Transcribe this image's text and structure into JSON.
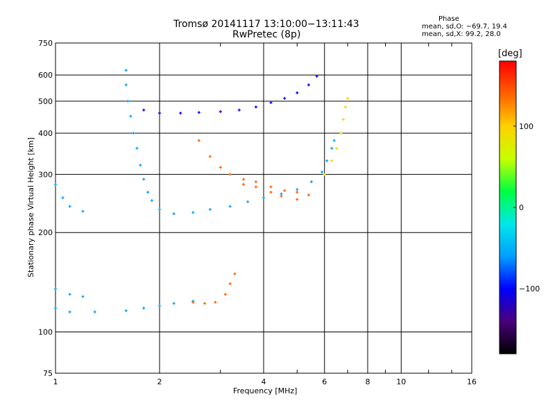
{
  "chart_data": {
    "type": "scatter",
    "title_line1": "Tromsø 20141117 13:10:00−13:11:43",
    "title_line2": "RwPretec (8p)",
    "xlabel": "Frequency [MHz]",
    "ylabel": "Stationary phase Virtual Height [km]",
    "x_scale": "log",
    "y_scale": "log",
    "xlim": [
      1,
      16
    ],
    "ylim": [
      75,
      750
    ],
    "x_ticks": [
      {
        "value": 1,
        "label": "1"
      },
      {
        "value": 2,
        "label": "2"
      },
      {
        "value": 4,
        "label": "4"
      },
      {
        "value": 6,
        "label": "6"
      },
      {
        "value": 8,
        "label": "8"
      },
      {
        "value": 10,
        "label": "10"
      },
      {
        "value": 16,
        "label": "16"
      }
    ],
    "y_ticks": [
      {
        "value": 75,
        "label": "75"
      },
      {
        "value": 100,
        "label": "100"
      },
      {
        "value": 200,
        "label": "200"
      },
      {
        "value": 300,
        "label": "300"
      },
      {
        "value": 400,
        "label": "400"
      },
      {
        "value": 500,
        "label": "500"
      },
      {
        "value": 600,
        "label": "600"
      },
      {
        "value": 750,
        "label": "750"
      }
    ],
    "grid": true,
    "phase_stats": {
      "title": "Phase",
      "line_o": "mean, sd,O: −69.7, 19.4",
      "line_x": "mean, sd,X:  99.2, 28.0"
    },
    "colorbar": {
      "unit_label": "[deg]",
      "range": [
        -180,
        180
      ],
      "ticks": [
        {
          "value": 100,
          "label": "100"
        },
        {
          "value": 0,
          "label": "0"
        },
        {
          "value": -100,
          "label": "−100"
        }
      ],
      "colors": [
        "#000000",
        "#4a007a",
        "#0000ff",
        "#00a0ff",
        "#00e8e8",
        "#00ff40",
        "#c8ff00",
        "#ffd000",
        "#ff6000",
        "#ff0000"
      ]
    },
    "series": [
      {
        "values": [
          [
            1.6,
            620
          ],
          [
            1.6,
            560
          ],
          [
            1.62,
            500
          ],
          [
            1.65,
            450
          ],
          [
            1.68,
            400
          ],
          [
            1.72,
            360
          ],
          [
            1.76,
            320
          ],
          [
            1.8,
            290
          ],
          [
            1.85,
            265
          ],
          [
            1.9,
            250
          ],
          [
            2.0,
            235
          ],
          [
            2.2,
            228
          ],
          [
            2.5,
            230
          ],
          [
            2.8,
            235
          ],
          [
            3.2,
            240
          ],
          [
            3.6,
            248
          ],
          [
            4.0,
            255
          ],
          [
            4.5,
            262
          ],
          [
            5.0,
            270
          ],
          [
            5.5,
            285
          ],
          [
            5.9,
            305
          ],
          [
            6.1,
            330
          ],
          [
            6.3,
            360
          ],
          [
            6.4,
            380
          ]
        ],
        "phase": -70
      },
      {
        "values": [
          [
            1.8,
            470
          ],
          [
            2.0,
            460
          ],
          [
            2.3,
            460
          ],
          [
            2.6,
            462
          ],
          [
            3.0,
            465
          ],
          [
            3.4,
            470
          ],
          [
            3.8,
            480
          ],
          [
            4.2,
            495
          ],
          [
            4.6,
            510
          ],
          [
            5.0,
            530
          ],
          [
            5.4,
            560
          ],
          [
            5.7,
            595
          ]
        ],
        "phase": -95
      },
      {
        "values": [
          [
            2.6,
            380
          ],
          [
            2.8,
            340
          ],
          [
            3.0,
            315
          ],
          [
            3.2,
            300
          ],
          [
            3.5,
            290
          ],
          [
            3.8,
            285
          ],
          [
            4.2,
            275
          ],
          [
            4.6,
            268
          ],
          [
            5.0,
            265
          ]
        ],
        "phase": 120
      },
      {
        "values": [
          [
            3.5,
            280
          ],
          [
            3.8,
            275
          ],
          [
            4.2,
            265
          ],
          [
            4.5,
            258
          ],
          [
            5.0,
            252
          ],
          [
            5.4,
            260
          ]
        ],
        "phase": 140
      },
      {
        "values": [
          [
            6.0,
            300
          ],
          [
            6.3,
            330
          ],
          [
            6.5,
            360
          ],
          [
            6.7,
            400
          ],
          [
            6.8,
            440
          ],
          [
            6.9,
            480
          ],
          [
            7.0,
            510
          ]
        ],
        "phase": 90
      },
      {
        "values": [
          [
            1.0,
            118
          ],
          [
            1.1,
            115
          ],
          [
            1.3,
            115
          ],
          [
            1.6,
            116
          ],
          [
            1.8,
            118
          ],
          [
            2.0,
            120
          ],
          [
            2.2,
            122
          ],
          [
            2.5,
            124
          ]
        ],
        "phase": -60
      },
      {
        "values": [
          [
            2.5,
            123
          ],
          [
            2.7,
            122
          ],
          [
            2.9,
            123
          ],
          [
            3.1,
            130
          ],
          [
            3.2,
            140
          ],
          [
            3.3,
            150
          ]
        ],
        "phase": 130
      },
      {
        "values": [
          [
            1.0,
            280
          ],
          [
            1.05,
            255
          ],
          [
            1.1,
            240
          ],
          [
            1.2,
            232
          ]
        ],
        "phase": -55
      },
      {
        "values": [
          [
            1.0,
            135
          ],
          [
            1.1,
            130
          ],
          [
            1.2,
            128
          ]
        ],
        "phase": -50
      }
    ]
  }
}
